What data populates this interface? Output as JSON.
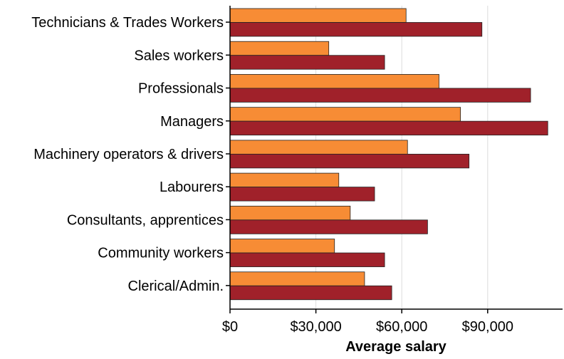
{
  "chart_data": {
    "type": "bar",
    "orientation": "horizontal",
    "categories": [
      "Technicians & Trades Workers",
      "Sales workers",
      "Professionals",
      "Managers",
      "Machinery operators & drivers",
      "Labourers",
      "Consultants, apprentices",
      "Community workers",
      "Clerical/Admin."
    ],
    "series": [
      {
        "color": "#f78c35",
        "values": [
          61500,
          34500,
          73000,
          80500,
          62000,
          38000,
          42000,
          36500,
          47000
        ]
      },
      {
        "color": "#a0212a",
        "values": [
          88000,
          54000,
          105000,
          111000,
          83500,
          50500,
          69000,
          54000,
          56500
        ]
      }
    ],
    "x_ticks": [
      0,
      30000,
      60000,
      90000
    ],
    "x_tick_labels": [
      "$0",
      "$30,000",
      "$60,000",
      "$90,000"
    ],
    "xlim": [
      0,
      117000
    ],
    "xlabel": "Average salary",
    "grid": "vertical",
    "legend": "none"
  }
}
